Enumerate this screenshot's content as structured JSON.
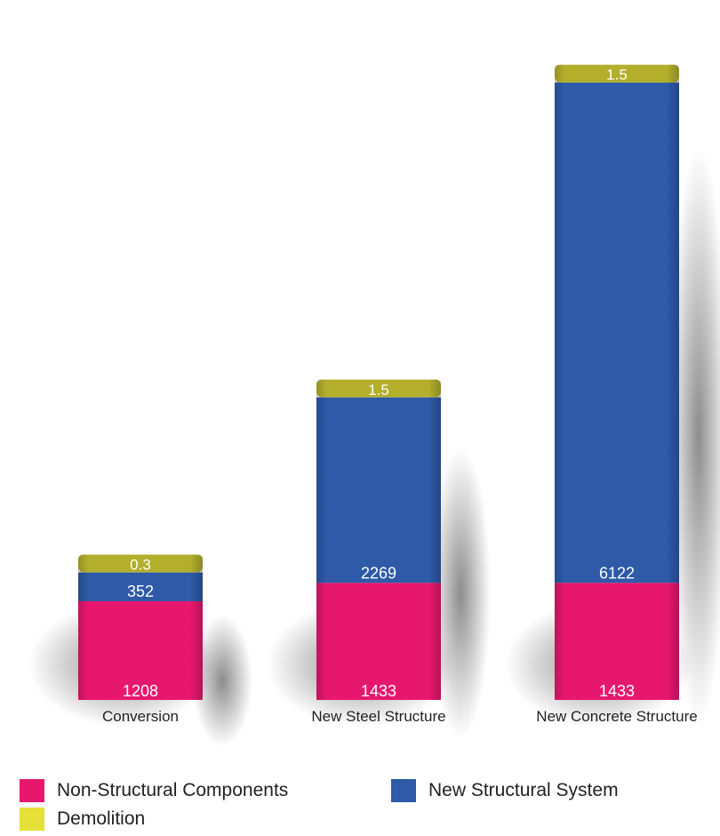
{
  "chart_data": {
    "type": "bar",
    "stacked": true,
    "categories": [
      "Conversion",
      "New Steel Structure",
      "New Concrete Structure"
    ],
    "series": [
      {
        "name": "Non-Structural Components",
        "color": "#e8176e",
        "values": [
          1208,
          1433,
          1433
        ],
        "labels": [
          "1208",
          "1433",
          "1433"
        ]
      },
      {
        "name": "New Structural System",
        "color": "#2e5aa8",
        "values": [
          352,
          2269,
          6122
        ],
        "labels": [
          "352",
          "2269",
          "6122"
        ]
      },
      {
        "name": "Demolition",
        "color": "#e6e03a",
        "values": [
          0.3,
          1.5,
          1.5
        ],
        "labels": [
          "0.3",
          "1.5",
          "1.5"
        ]
      }
    ],
    "xlabel": "",
    "ylabel": "",
    "grid": false,
    "legend_position": "bottom"
  }
}
